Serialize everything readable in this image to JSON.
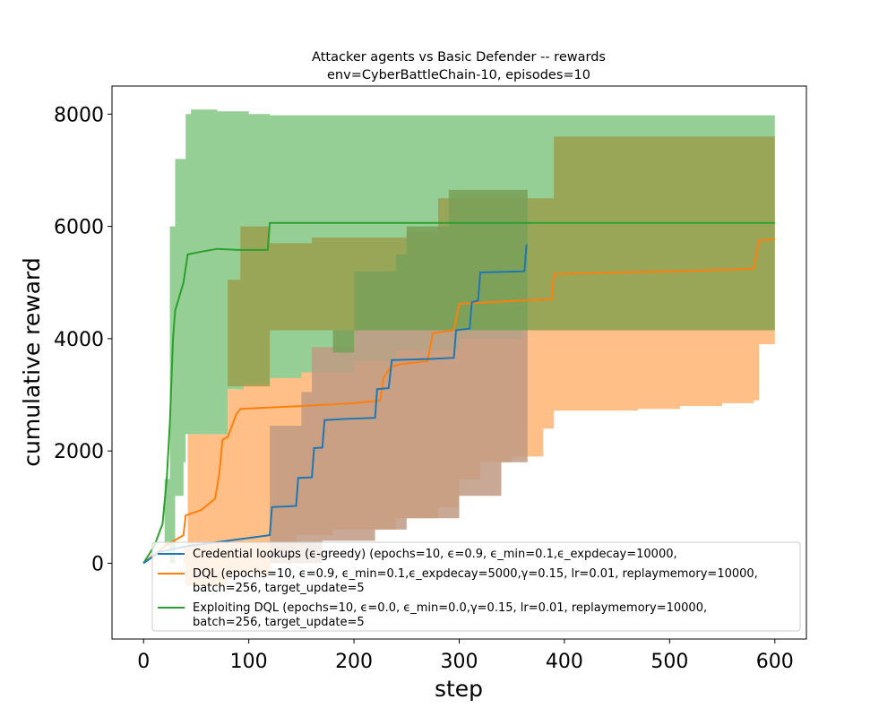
{
  "chart_data": {
    "type": "line",
    "title": "Attacker agents vs Basic Defender -- rewards",
    "subtitle": "env=CyberBattleChain-10, episodes=10",
    "xlabel": "step",
    "ylabel": "cumulative reward",
    "xlim": [
      -30,
      630
    ],
    "ylim": [
      -1350,
      8500
    ],
    "xticks": [
      0,
      100,
      200,
      300,
      400,
      500,
      600
    ],
    "yticks": [
      0,
      2000,
      4000,
      6000,
      8000
    ],
    "grid": false,
    "legend_position": "lower-right",
    "series": [
      {
        "name": "Credential lookups (ϵ-greedy) (epochs=10, ϵ=0.9, ϵ_min=0.1,ϵ_expdecay=10000,",
        "color": "#1f77b4",
        "band_opacity": 0.5,
        "mean": [
          [
            0,
            0
          ],
          [
            15,
            200
          ],
          [
            40,
            300
          ],
          [
            80,
            400
          ],
          [
            120,
            500
          ],
          [
            122,
            1000
          ],
          [
            145,
            1020
          ],
          [
            147,
            1520
          ],
          [
            160,
            1530
          ],
          [
            162,
            2050
          ],
          [
            170,
            2060
          ],
          [
            172,
            2550
          ],
          [
            190,
            2570
          ],
          [
            220,
            2590
          ],
          [
            222,
            3100
          ],
          [
            233,
            3120
          ],
          [
            236,
            3620
          ],
          [
            255,
            3630
          ],
          [
            275,
            3640
          ],
          [
            295,
            3660
          ],
          [
            297,
            4150
          ],
          [
            310,
            4180
          ],
          [
            312,
            4650
          ],
          [
            318,
            4680
          ],
          [
            320,
            5180
          ],
          [
            345,
            5190
          ],
          [
            362,
            5200
          ],
          [
            364,
            5680
          ]
        ],
        "upper": [
          [
            0,
            0
          ],
          [
            365,
            0
          ]
        ],
        "lower": [
          [
            0,
            0
          ],
          [
            365,
            0
          ]
        ]
      },
      {
        "name": "DQL (epochs=10, ϵ=0.9, ϵ_min=0.1,ϵ_expdecay=5000,γ=0.15, lr=0.01, replaymemory=10000,\nbatch=256, target_update=5",
        "color": "#ff7f0e",
        "band_opacity": 0.5,
        "mean": [
          [
            0,
            0
          ],
          [
            20,
            300
          ],
          [
            38,
            500
          ],
          [
            40,
            850
          ],
          [
            55,
            950
          ],
          [
            68,
            1150
          ],
          [
            72,
            1600
          ],
          [
            75,
            2200
          ],
          [
            80,
            2250
          ],
          [
            88,
            2650
          ],
          [
            92,
            2750
          ],
          [
            150,
            2800
          ],
          [
            200,
            2850
          ],
          [
            225,
            2900
          ],
          [
            228,
            3300
          ],
          [
            235,
            3500
          ],
          [
            245,
            3550
          ],
          [
            270,
            3600
          ],
          [
            275,
            4100
          ],
          [
            295,
            4150
          ],
          [
            300,
            4620
          ],
          [
            360,
            4680
          ],
          [
            388,
            4700
          ],
          [
            390,
            5150
          ],
          [
            450,
            5180
          ],
          [
            510,
            5200
          ],
          [
            580,
            5250
          ],
          [
            585,
            5750
          ],
          [
            600,
            5770
          ]
        ],
        "upper": [
          [
            0,
            0
          ],
          [
            38,
            300
          ],
          [
            42,
            2300
          ],
          [
            80,
            3100
          ],
          [
            90,
            3100
          ],
          [
            92,
            4150
          ],
          [
            119,
            4150
          ],
          [
            120,
            4150
          ],
          [
            300,
            4150
          ],
          [
            600,
            4150
          ]
        ],
        "lower": [
          [
            0,
            0
          ],
          [
            40,
            -400
          ],
          [
            80,
            -200
          ],
          [
            120,
            200
          ],
          [
            145,
            500
          ],
          [
            180,
            600
          ],
          [
            240,
            800
          ],
          [
            280,
            1000
          ],
          [
            300,
            1500
          ],
          [
            320,
            1800
          ],
          [
            350,
            1900
          ],
          [
            380,
            2400
          ],
          [
            390,
            2720
          ],
          [
            470,
            2750
          ],
          [
            510,
            2800
          ],
          [
            550,
            2850
          ],
          [
            580,
            2900
          ],
          [
            585,
            3900
          ],
          [
            600,
            3900
          ]
        ]
      },
      {
        "name": "Exploiting DQL (epochs=10, ϵ=0.0, ϵ_min=0.0,γ=0.15, lr=0.01, replaymemory=10000,\nbatch=256, target_update=5",
        "color": "#2ca02c",
        "band_opacity": 0.5,
        "mean": [
          [
            0,
            0
          ],
          [
            10,
            300
          ],
          [
            18,
            700
          ],
          [
            22,
            1500
          ],
          [
            25,
            2500
          ],
          [
            28,
            4000
          ],
          [
            30,
            4500
          ],
          [
            38,
            5000
          ],
          [
            42,
            5500
          ],
          [
            55,
            5550
          ],
          [
            70,
            5600
          ],
          [
            90,
            5580
          ],
          [
            118,
            5580
          ],
          [
            120,
            6060
          ],
          [
            300,
            6060
          ],
          [
            600,
            6060
          ]
        ],
        "upper": [
          [
            0,
            0
          ],
          [
            20,
            1500
          ],
          [
            25,
            6000
          ],
          [
            30,
            7200
          ],
          [
            38,
            7200
          ],
          [
            40,
            8000
          ],
          [
            45,
            8080
          ],
          [
            70,
            8050
          ],
          [
            100,
            8000
          ],
          [
            120,
            7980
          ],
          [
            600,
            7950
          ]
        ],
        "lower": [
          [
            0,
            0
          ],
          [
            20,
            300
          ],
          [
            25,
            0
          ],
          [
            30,
            1200
          ],
          [
            38,
            1800
          ],
          [
            40,
            2300
          ],
          [
            80,
            3100
          ],
          [
            95,
            3200
          ],
          [
            120,
            3300
          ],
          [
            150,
            3400
          ],
          [
            200,
            3600
          ],
          [
            240,
            3800
          ],
          [
            300,
            4000
          ],
          [
            360,
            4150
          ],
          [
            600,
            4150
          ]
        ]
      }
    ],
    "overlap_regions": [
      {
        "label": "green+orange",
        "color": "#9a9a46",
        "opacity": 0.78,
        "upper": [
          [
            80,
            5050
          ],
          [
            90,
            5050
          ],
          [
            92,
            6000
          ],
          [
            118,
            6000
          ],
          [
            120,
            5700
          ],
          [
            160,
            5800
          ],
          [
            250,
            5900
          ],
          [
            280,
            6500
          ],
          [
            350,
            6500
          ],
          [
            390,
            7600
          ],
          [
            470,
            7600
          ],
          [
            600,
            7600
          ]
        ],
        "lower": [
          [
            80,
            3150
          ],
          [
            120,
            3150
          ],
          [
            120,
            4150
          ],
          [
            600,
            4150
          ]
        ]
      },
      {
        "label": "orange+blue",
        "color": "#c09a84",
        "opacity": 0.85,
        "upper": [
          [
            120,
            2450
          ],
          [
            150,
            3050
          ],
          [
            160,
            3850
          ],
          [
            200,
            4150
          ],
          [
            300,
            4150
          ],
          [
            365,
            4150
          ]
        ],
        "lower": [
          [
            120,
            0
          ],
          [
            170,
            400
          ],
          [
            220,
            600
          ],
          [
            250,
            800
          ],
          [
            300,
            1200
          ],
          [
            340,
            1800
          ],
          [
            365,
            2200
          ]
        ]
      },
      {
        "label": "all three",
        "color": "#7aa05a",
        "opacity": 0.88,
        "upper": [
          [
            180,
            3750
          ],
          [
            200,
            5200
          ],
          [
            240,
            5500
          ],
          [
            250,
            6000
          ],
          [
            290,
            6650
          ],
          [
            365,
            6650
          ]
        ],
        "lower": [
          [
            180,
            4150
          ],
          [
            365,
            4150
          ]
        ]
      }
    ]
  }
}
